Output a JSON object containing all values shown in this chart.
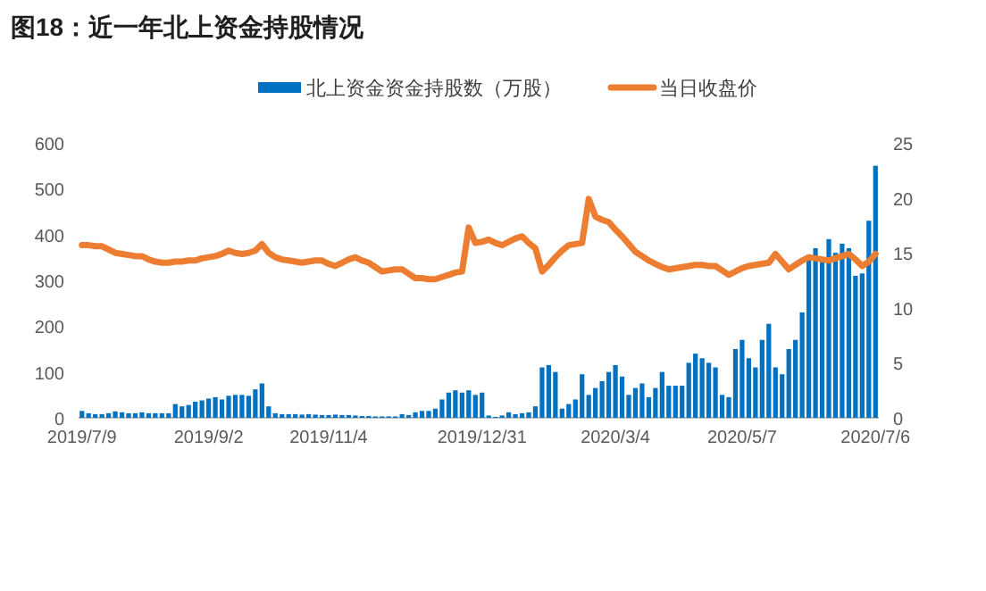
{
  "chart_data": {
    "type": "bar",
    "title": "图18：近一年北上资金持股情况",
    "legend": "top",
    "categories": [
      "2019/7/9",
      null,
      null,
      null,
      null,
      null,
      null,
      null,
      null,
      null,
      null,
      null,
      null,
      null,
      null,
      null,
      null,
      null,
      null,
      "2019/9/2",
      null,
      null,
      null,
      null,
      null,
      null,
      null,
      null,
      null,
      null,
      null,
      null,
      null,
      null,
      null,
      null,
      null,
      "2019/11/4",
      null,
      null,
      null,
      null,
      null,
      null,
      null,
      null,
      null,
      null,
      null,
      null,
      null,
      null,
      null,
      null,
      null,
      null,
      null,
      null,
      null,
      null,
      "2019/12/31",
      null,
      null,
      null,
      null,
      null,
      null,
      null,
      null,
      null,
      null,
      null,
      null,
      null,
      null,
      null,
      null,
      null,
      null,
      null,
      "2020/3/4",
      null,
      null,
      null,
      null,
      null,
      null,
      null,
      null,
      null,
      null,
      null,
      null,
      null,
      null,
      null,
      null,
      null,
      null,
      "2020/5/7",
      null,
      null,
      null,
      null,
      null,
      null,
      null,
      null,
      null,
      null,
      null,
      null,
      null,
      null,
      null,
      null,
      null,
      null,
      null,
      "2020/7/6"
    ],
    "ylim": [
      0,
      600
    ],
    "yticks": [
      0,
      100,
      200,
      300,
      400,
      500,
      600
    ],
    "y2lim": [
      0,
      25
    ],
    "y2ticks": [
      0,
      5,
      10,
      15,
      20,
      25
    ],
    "series": [
      {
        "name": "北上资金资金持股数（万股）",
        "color": "#0070c0",
        "values": [
          15,
          10,
          8,
          8,
          10,
          14,
          12,
          10,
          10,
          12,
          10,
          10,
          10,
          10,
          30,
          25,
          28,
          35,
          38,
          42,
          45,
          40,
          48,
          50,
          50,
          48,
          62,
          75,
          25,
          10,
          8,
          8,
          8,
          7,
          8,
          7,
          6,
          6,
          7,
          6,
          6,
          5,
          4,
          4,
          3,
          3,
          3,
          3,
          8,
          6,
          12,
          15,
          15,
          20,
          40,
          55,
          60,
          55,
          60,
          50,
          55,
          5,
          2,
          5,
          12,
          8,
          10,
          12,
          25,
          110,
          115,
          100,
          20,
          30,
          40,
          95,
          50,
          65,
          80,
          100,
          115,
          90,
          50,
          65,
          75,
          45,
          65,
          100,
          70,
          70,
          70,
          120,
          140,
          130,
          120,
          110,
          50,
          45,
          150,
          170,
          130,
          110,
          170,
          205,
          110,
          95,
          150,
          170,
          230,
          350,
          370,
          340,
          390,
          360,
          380,
          370,
          310,
          315,
          430,
          550
        ]
      },
      {
        "name": "当日收盘价",
        "type": "line",
        "axis": "y2",
        "color": "#ed7d31",
        "values": [
          15.7,
          15.7,
          15.6,
          15.6,
          15.3,
          15.0,
          14.9,
          14.8,
          14.7,
          14.7,
          14.4,
          14.2,
          14.1,
          14.1,
          14.2,
          14.2,
          14.3,
          14.3,
          14.5,
          14.6,
          14.7,
          14.9,
          15.2,
          15.0,
          14.9,
          15.0,
          15.2,
          15.8,
          15.0,
          14.6,
          14.4,
          14.3,
          14.2,
          14.1,
          14.2,
          14.3,
          14.3,
          14.0,
          13.8,
          14.1,
          14.4,
          14.6,
          14.3,
          14.1,
          13.7,
          13.3,
          13.4,
          13.5,
          13.5,
          13.1,
          12.7,
          12.7,
          12.6,
          12.6,
          12.8,
          13.0,
          13.2,
          13.3,
          17.3,
          15.9,
          16.0,
          16.2,
          15.9,
          15.7,
          16.0,
          16.3,
          16.5,
          15.9,
          15.4,
          13.3,
          13.9,
          14.6,
          15.2,
          15.7,
          15.8,
          15.9,
          19.9,
          18.3,
          18.0,
          17.8,
          17.1,
          16.5,
          15.8,
          15.1,
          14.7,
          14.3,
          14.0,
          13.7,
          13.5,
          13.6,
          13.7,
          13.8,
          13.9,
          13.9,
          13.8,
          13.8,
          13.4,
          13.0,
          13.3,
          13.6,
          13.8,
          13.9,
          14.0,
          14.1,
          14.9,
          14.2,
          13.5,
          13.9,
          14.3,
          14.6,
          14.5,
          14.4,
          14.3,
          14.5,
          14.7,
          14.9,
          14.4,
          13.8,
          14.2,
          14.9
        ]
      }
    ]
  }
}
